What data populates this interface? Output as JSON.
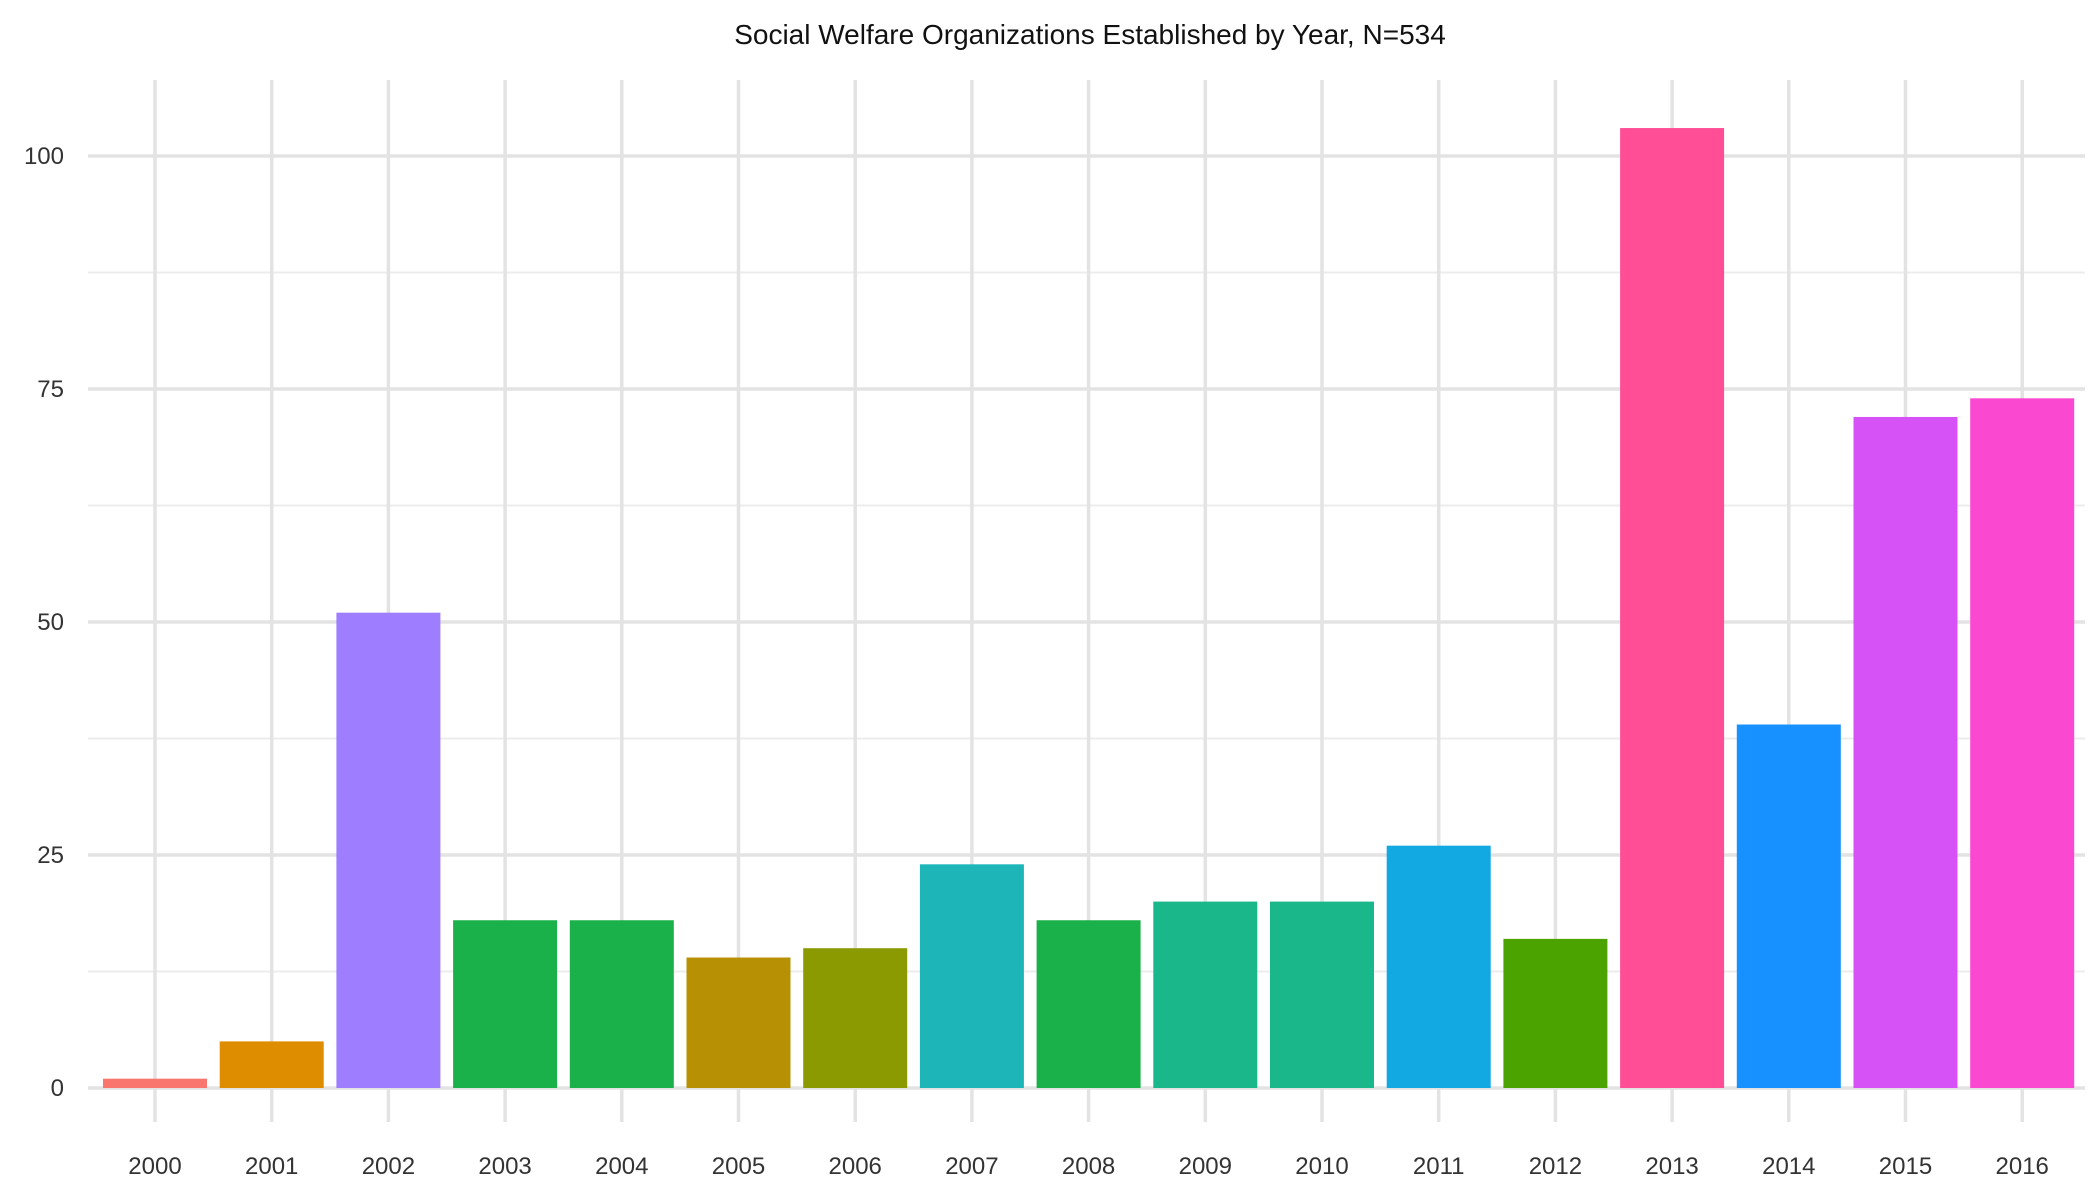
{
  "chart_data": {
    "type": "bar",
    "title": "Social Welfare Organizations Established by Year, N=534",
    "xlabel": "",
    "ylabel": "",
    "categories": [
      "2000",
      "2001",
      "2002",
      "2003",
      "2004",
      "2005",
      "2006",
      "2007",
      "2008",
      "2009",
      "2010",
      "2011",
      "2012",
      "2013",
      "2014",
      "2015",
      "2016"
    ],
    "values": [
      1,
      5,
      51,
      18,
      18,
      14,
      15,
      24,
      18,
      20,
      20,
      26,
      16,
      103,
      39,
      72,
      74
    ],
    "colors": [
      "#F8766D",
      "#DE8C00",
      "#9F7DFF",
      "#1AB04A",
      "#1AB04A",
      "#B79003",
      "#8B9A00",
      "#1DB5B8",
      "#1AB04A",
      "#19B78A",
      "#19B78A",
      "#12A8E2",
      "#4BA300",
      "#FF4D96",
      "#1791FF",
      "#D652F6",
      "#FA48D1"
    ],
    "ylim": [
      0,
      108
    ],
    "yticks": [
      0,
      25,
      50,
      75,
      100
    ],
    "yticks_minor": [
      12.5,
      37.5,
      62.5,
      87.5
    ],
    "grid": true,
    "legend": "none"
  }
}
